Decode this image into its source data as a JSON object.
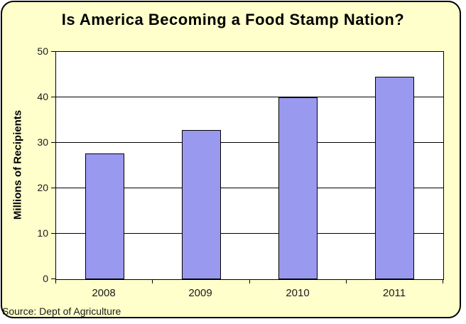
{
  "chart_data": {
    "type": "bar",
    "title": "Is America Becoming a Food Stamp Nation?",
    "categories": [
      "2008",
      "2009",
      "2010",
      "2011"
    ],
    "values": [
      27.7,
      32.8,
      40.0,
      44.5
    ],
    "xlabel": "",
    "ylabel": "Millions of Recipients",
    "ylim": [
      0,
      50
    ],
    "ytick_step": 10,
    "grid": true,
    "legend": false,
    "source": "Source: Dept of Agriculture",
    "colors": {
      "bar_fill": "#9999F0",
      "bar_border": "#000000",
      "panel_bg": "#FFFFCC",
      "plot_bg": "#FFFFFF",
      "axis_line": "#000000",
      "text": "#000000"
    }
  }
}
